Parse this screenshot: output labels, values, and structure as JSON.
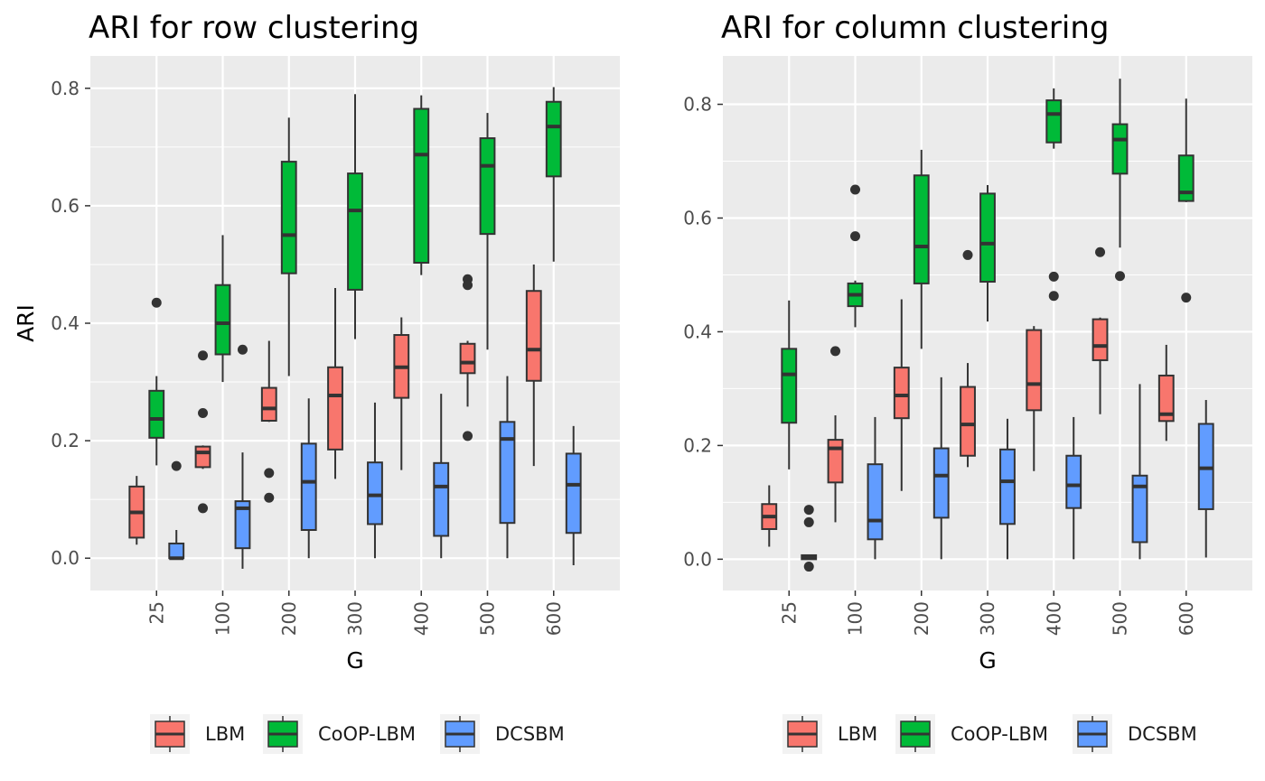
{
  "colors": {
    "LBM": "#F8766D",
    "CoOP-LBM": "#00BA38",
    "DCSBM": "#619CFF",
    "panel_bg": "#EBEBEB",
    "grid": "#FFFFFF",
    "stroke": "#333333"
  },
  "legend": {
    "items": [
      "LBM",
      "CoOP-LBM",
      "DCSBM"
    ]
  },
  "chart_data": [
    {
      "type": "boxplot",
      "title": "ARI for row clustering",
      "xlabel": "G",
      "ylabel": "ARI",
      "categories": [
        "25",
        "100",
        "200",
        "300",
        "400",
        "500",
        "600"
      ],
      "ylim": [
        -0.055,
        0.855
      ],
      "yticks": [
        0.0,
        0.2,
        0.4,
        0.6,
        0.8
      ],
      "ytick_labels": [
        "0.0",
        "0.2",
        "0.4",
        "0.6",
        "0.8"
      ],
      "grid": true,
      "legend_position": "bottom",
      "series": [
        {
          "name": "LBM",
          "boxes": [
            {
              "lo": 0.023,
              "q1": 0.035,
              "med": 0.078,
              "q3": 0.122,
              "hi": 0.14,
              "out": []
            },
            {
              "lo": 0.152,
              "q1": 0.155,
              "med": 0.18,
              "q3": 0.19,
              "hi": 0.192,
              "out": [
                0.345,
                0.247,
                0.085
              ]
            },
            {
              "lo": 0.232,
              "q1": 0.234,
              "med": 0.255,
              "q3": 0.29,
              "hi": 0.37,
              "out": [
                0.145,
                0.103
              ]
            },
            {
              "lo": 0.135,
              "q1": 0.185,
              "med": 0.277,
              "q3": 0.325,
              "hi": 0.46,
              "out": []
            },
            {
              "lo": 0.15,
              "q1": 0.273,
              "med": 0.325,
              "q3": 0.38,
              "hi": 0.41,
              "out": []
            },
            {
              "lo": 0.258,
              "q1": 0.315,
              "med": 0.333,
              "q3": 0.365,
              "hi": 0.37,
              "out": [
                0.475,
                0.465,
                0.208
              ]
            },
            {
              "lo": 0.157,
              "q1": 0.302,
              "med": 0.355,
              "q3": 0.455,
              "hi": 0.5,
              "out": []
            }
          ]
        },
        {
          "name": "CoOP-LBM",
          "boxes": [
            {
              "lo": 0.158,
              "q1": 0.205,
              "med": 0.237,
              "q3": 0.285,
              "hi": 0.31,
              "out": [
                0.435
              ]
            },
            {
              "lo": 0.3,
              "q1": 0.347,
              "med": 0.4,
              "q3": 0.465,
              "hi": 0.55,
              "out": []
            },
            {
              "lo": 0.31,
              "q1": 0.485,
              "med": 0.55,
              "q3": 0.675,
              "hi": 0.75,
              "out": []
            },
            {
              "lo": 0.373,
              "q1": 0.457,
              "med": 0.592,
              "q3": 0.655,
              "hi": 0.79,
              "out": []
            },
            {
              "lo": 0.482,
              "q1": 0.503,
              "med": 0.687,
              "q3": 0.765,
              "hi": 0.788,
              "out": []
            },
            {
              "lo": 0.355,
              "q1": 0.552,
              "med": 0.668,
              "q3": 0.715,
              "hi": 0.758,
              "out": []
            },
            {
              "lo": 0.505,
              "q1": 0.65,
              "med": 0.735,
              "q3": 0.777,
              "hi": 0.802,
              "out": []
            }
          ]
        },
        {
          "name": "DCSBM",
          "boxes": [
            {
              "lo": 0.0,
              "q1": 0.0,
              "med": 0.0,
              "q3": 0.025,
              "hi": 0.048,
              "out": [
                0.157
              ]
            },
            {
              "lo": -0.018,
              "q1": 0.017,
              "med": 0.085,
              "q3": 0.097,
              "hi": 0.18,
              "out": [
                0.355
              ]
            },
            {
              "lo": 0.0,
              "q1": 0.048,
              "med": 0.13,
              "q3": 0.195,
              "hi": 0.272,
              "out": []
            },
            {
              "lo": 0.0,
              "q1": 0.058,
              "med": 0.107,
              "q3": 0.163,
              "hi": 0.265,
              "out": []
            },
            {
              "lo": 0.0,
              "q1": 0.038,
              "med": 0.122,
              "q3": 0.162,
              "hi": 0.28,
              "out": []
            },
            {
              "lo": 0.0,
              "q1": 0.06,
              "med": 0.203,
              "q3": 0.232,
              "hi": 0.31,
              "out": []
            },
            {
              "lo": -0.012,
              "q1": 0.043,
              "med": 0.125,
              "q3": 0.178,
              "hi": 0.225,
              "out": []
            }
          ]
        }
      ]
    },
    {
      "type": "boxplot",
      "title": "ARI for column clustering",
      "xlabel": "G",
      "ylabel": "",
      "categories": [
        "25",
        "100",
        "200",
        "300",
        "400",
        "500",
        "600"
      ],
      "ylim": [
        -0.055,
        0.885
      ],
      "yticks": [
        0.0,
        0.2,
        0.4,
        0.6,
        0.8
      ],
      "ytick_labels": [
        "0.0",
        "0.2",
        "0.4",
        "0.6",
        "0.8"
      ],
      "grid": true,
      "legend_position": "bottom",
      "series": [
        {
          "name": "LBM",
          "boxes": [
            {
              "lo": 0.022,
              "q1": 0.053,
              "med": 0.075,
              "q3": 0.097,
              "hi": 0.13,
              "out": []
            },
            {
              "lo": 0.065,
              "q1": 0.135,
              "med": 0.195,
              "q3": 0.21,
              "hi": 0.253,
              "out": [
                0.366
              ]
            },
            {
              "lo": 0.12,
              "q1": 0.248,
              "med": 0.288,
              "q3": 0.337,
              "hi": 0.457,
              "out": []
            },
            {
              "lo": 0.162,
              "q1": 0.182,
              "med": 0.237,
              "q3": 0.303,
              "hi": 0.345,
              "out": [
                0.535
              ]
            },
            {
              "lo": 0.155,
              "q1": 0.262,
              "med": 0.308,
              "q3": 0.403,
              "hi": 0.41,
              "out": []
            },
            {
              "lo": 0.255,
              "q1": 0.35,
              "med": 0.375,
              "q3": 0.422,
              "hi": 0.425,
              "out": [
                0.54
              ]
            },
            {
              "lo": 0.208,
              "q1": 0.243,
              "med": 0.255,
              "q3": 0.323,
              "hi": 0.377,
              "out": []
            }
          ]
        },
        {
          "name": "CoOP-LBM",
          "boxes": [
            {
              "lo": 0.158,
              "q1": 0.24,
              "med": 0.325,
              "q3": 0.37,
              "hi": 0.455,
              "out": []
            },
            {
              "lo": 0.408,
              "q1": 0.445,
              "med": 0.465,
              "q3": 0.485,
              "hi": 0.49,
              "out": [
                0.65,
                0.568
              ]
            },
            {
              "lo": 0.37,
              "q1": 0.485,
              "med": 0.55,
              "q3": 0.675,
              "hi": 0.72,
              "out": []
            },
            {
              "lo": 0.418,
              "q1": 0.488,
              "med": 0.555,
              "q3": 0.643,
              "hi": 0.658,
              "out": []
            },
            {
              "lo": 0.722,
              "q1": 0.733,
              "med": 0.783,
              "q3": 0.807,
              "hi": 0.828,
              "out": [
                0.497,
                0.463
              ]
            },
            {
              "lo": 0.548,
              "q1": 0.678,
              "med": 0.738,
              "q3": 0.765,
              "hi": 0.845,
              "out": [
                0.498
              ]
            },
            {
              "lo": 0.628,
              "q1": 0.63,
              "med": 0.645,
              "q3": 0.71,
              "hi": 0.81,
              "out": [
                0.46
              ]
            }
          ]
        },
        {
          "name": "DCSBM",
          "boxes": [
            {
              "lo": 0.0,
              "q1": 0.0,
              "med": 0.003,
              "q3": 0.007,
              "hi": 0.008,
              "out": [
                0.087,
                0.065,
                -0.013
              ]
            },
            {
              "lo": 0.0,
              "q1": 0.035,
              "med": 0.068,
              "q3": 0.167,
              "hi": 0.25,
              "out": []
            },
            {
              "lo": 0.0,
              "q1": 0.073,
              "med": 0.147,
              "q3": 0.195,
              "hi": 0.32,
              "out": []
            },
            {
              "lo": 0.0,
              "q1": 0.062,
              "med": 0.137,
              "q3": 0.193,
              "hi": 0.247,
              "out": []
            },
            {
              "lo": 0.0,
              "q1": 0.09,
              "med": 0.13,
              "q3": 0.182,
              "hi": 0.25,
              "out": []
            },
            {
              "lo": 0.0,
              "q1": 0.03,
              "med": 0.128,
              "q3": 0.147,
              "hi": 0.308,
              "out": []
            },
            {
              "lo": 0.003,
              "q1": 0.088,
              "med": 0.16,
              "q3": 0.238,
              "hi": 0.28,
              "out": []
            }
          ]
        }
      ]
    }
  ]
}
